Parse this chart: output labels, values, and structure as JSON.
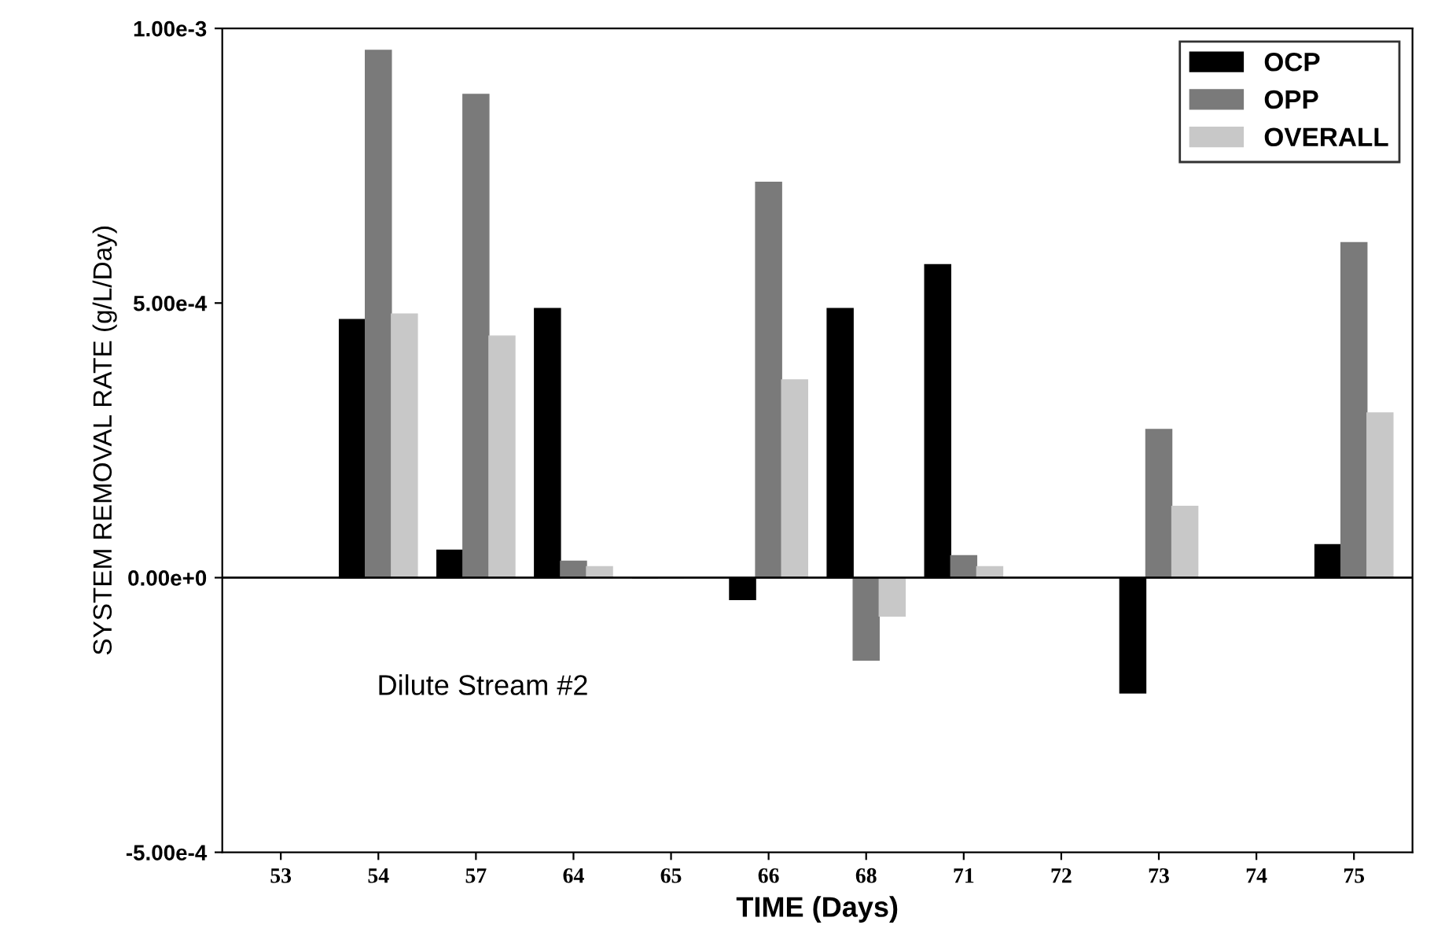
{
  "chart_data": {
    "type": "bar",
    "xlabel": "TIME (Days)",
    "ylabel": "SYSTEM REMOVAL RATE (g/L/Day)",
    "categories": [
      "53",
      "54",
      "57",
      "64",
      "65",
      "66",
      "68",
      "71",
      "72",
      "73",
      "74",
      "75"
    ],
    "series": [
      {
        "name": "OCP",
        "color": "#000000",
        "values": [
          null,
          0.00047,
          5e-05,
          0.00049,
          0,
          -4e-05,
          0.00049,
          0.00057,
          null,
          -0.00021,
          null,
          6e-05
        ]
      },
      {
        "name": "OPP",
        "color": "#7a7a7a",
        "values": [
          null,
          0.00096,
          0.00088,
          3e-05,
          0,
          0.00072,
          -0.00015,
          4e-05,
          null,
          0.00027,
          null,
          0.00061
        ]
      },
      {
        "name": "OVERALL",
        "color": "#c8c8c8",
        "values": [
          null,
          0.00048,
          0.00044,
          2e-05,
          0,
          0.00036,
          -7e-05,
          2e-05,
          null,
          0.00013,
          null,
          0.0003
        ]
      }
    ],
    "ylim": [
      -0.0005,
      0.001
    ],
    "yticks": [
      {
        "value": -0.0005,
        "label": "-5.00e-4"
      },
      {
        "value": 0,
        "label": "0.00e+0"
      },
      {
        "value": 0.0005,
        "label": "5.00e-4"
      },
      {
        "value": 0.001,
        "label": "1.00e-3"
      }
    ],
    "ref_lines": [
      {
        "axis": "y",
        "value": 0,
        "color": "#000000"
      }
    ],
    "annotations": [
      "Dilute Stream #2"
    ],
    "legend": "top right",
    "grid": false
  }
}
